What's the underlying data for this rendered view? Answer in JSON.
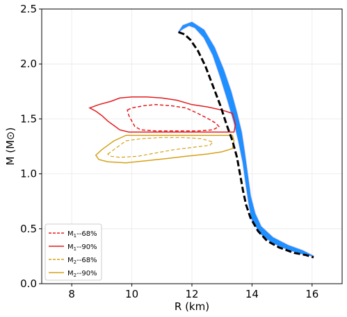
{
  "chart_data": {
    "type": "line",
    "xlabel": "R (km)",
    "ylabel": "M (M⊙)",
    "xlim": [
      7.0,
      17.0
    ],
    "ylim": [
      0.0,
      2.5
    ],
    "x_ticks": [
      8,
      10,
      12,
      14,
      16
    ],
    "x_tick_labels": [
      "8",
      "10",
      "12",
      "14",
      "16"
    ],
    "y_ticks": [
      0.0,
      0.5,
      1.0,
      1.5,
      2.0,
      2.5
    ],
    "y_tick_labels": [
      "0.0",
      "0.5",
      "1.0",
      "1.5",
      "2.0",
      "2.5"
    ],
    "grid": true,
    "legend_position": "lower-left",
    "colors": {
      "band": "#1e90ff",
      "band_edge": "#e6a8e6",
      "m1": "#e41a1c",
      "m2": "#d4a017",
      "best_fit": "#000000"
    },
    "legend": [
      {
        "label_main": "M",
        "label_sub": "1",
        "label_tail": "--68%",
        "color": "#e41a1c",
        "dashed": true
      },
      {
        "label_main": "M",
        "label_sub": "1",
        "label_tail": "--90%",
        "color": "#e41a1c",
        "dashed": false
      },
      {
        "label_main": "M",
        "label_sub": "2",
        "label_tail": "--68%",
        "color": "#d4a017",
        "dashed": true
      },
      {
        "label_main": "M",
        "label_sub": "2",
        "label_tail": "--90%",
        "color": "#d4a017",
        "dashed": false
      }
    ],
    "band_left": [
      [
        11.55,
        2.29
      ],
      [
        11.7,
        2.32
      ],
      [
        11.9,
        2.35
      ],
      [
        12.1,
        2.33
      ],
      [
        12.4,
        2.24
      ],
      [
        12.7,
        2.08
      ],
      [
        12.95,
        1.88
      ],
      [
        13.2,
        1.66
      ],
      [
        13.4,
        1.47
      ],
      [
        13.55,
        1.3
      ],
      [
        13.7,
        1.1
      ],
      [
        13.8,
        0.9
      ],
      [
        13.9,
        0.72
      ],
      [
        14.0,
        0.58
      ],
      [
        14.3,
        0.45
      ],
      [
        14.7,
        0.37
      ],
      [
        15.2,
        0.31
      ],
      [
        15.7,
        0.27
      ],
      [
        16.05,
        0.25
      ]
    ],
    "band_right": [
      [
        16.05,
        0.25
      ],
      [
        15.7,
        0.3
      ],
      [
        15.2,
        0.35
      ],
      [
        14.7,
        0.42
      ],
      [
        14.3,
        0.52
      ],
      [
        14.1,
        0.64
      ],
      [
        13.95,
        0.8
      ],
      [
        13.85,
        1.0
      ],
      [
        13.75,
        1.2
      ],
      [
        13.65,
        1.38
      ],
      [
        13.5,
        1.55
      ],
      [
        13.3,
        1.75
      ],
      [
        13.05,
        1.95
      ],
      [
        12.75,
        2.15
      ],
      [
        12.4,
        2.31
      ],
      [
        12.0,
        2.38
      ],
      [
        11.7,
        2.35
      ],
      [
        11.55,
        2.29
      ]
    ],
    "best_fit": [
      [
        11.55,
        2.29
      ],
      [
        11.75,
        2.27
      ],
      [
        11.95,
        2.22
      ],
      [
        12.2,
        2.12
      ],
      [
        12.45,
        1.98
      ],
      [
        12.7,
        1.8
      ],
      [
        12.95,
        1.62
      ],
      [
        13.15,
        1.45
      ],
      [
        13.35,
        1.3
      ],
      [
        13.5,
        1.15
      ],
      [
        13.6,
        1.0
      ],
      [
        13.7,
        0.85
      ],
      [
        13.8,
        0.72
      ],
      [
        13.95,
        0.6
      ],
      [
        14.2,
        0.48
      ],
      [
        14.5,
        0.39
      ],
      [
        14.9,
        0.33
      ],
      [
        15.4,
        0.28
      ],
      [
        15.8,
        0.26
      ],
      [
        16.05,
        0.24
      ]
    ],
    "m1_90": [
      [
        8.6,
        1.6
      ],
      [
        8.9,
        1.63
      ],
      [
        9.3,
        1.66
      ],
      [
        9.6,
        1.69
      ],
      [
        10.0,
        1.7
      ],
      [
        10.5,
        1.7
      ],
      [
        11.0,
        1.69
      ],
      [
        11.5,
        1.67
      ],
      [
        12.0,
        1.63
      ],
      [
        12.5,
        1.61
      ],
      [
        13.0,
        1.58
      ],
      [
        13.35,
        1.55
      ],
      [
        13.45,
        1.45
      ],
      [
        13.4,
        1.38
      ],
      [
        12.5,
        1.38
      ],
      [
        11.5,
        1.38
      ],
      [
        10.5,
        1.38
      ],
      [
        9.9,
        1.38
      ],
      [
        9.6,
        1.4
      ],
      [
        9.4,
        1.44
      ],
      [
        9.2,
        1.48
      ],
      [
        9.0,
        1.53
      ],
      [
        8.8,
        1.57
      ],
      [
        8.6,
        1.6
      ]
    ],
    "m1_68": [
      [
        9.85,
        1.58
      ],
      [
        10.0,
        1.6
      ],
      [
        10.4,
        1.62
      ],
      [
        10.8,
        1.63
      ],
      [
        11.3,
        1.62
      ],
      [
        11.8,
        1.6
      ],
      [
        12.2,
        1.55
      ],
      [
        12.55,
        1.5
      ],
      [
        12.8,
        1.46
      ],
      [
        12.9,
        1.43
      ],
      [
        12.7,
        1.4
      ],
      [
        12.2,
        1.39
      ],
      [
        11.5,
        1.39
      ],
      [
        10.8,
        1.39
      ],
      [
        10.3,
        1.4
      ],
      [
        10.1,
        1.43
      ],
      [
        10.0,
        1.48
      ],
      [
        9.9,
        1.53
      ],
      [
        9.85,
        1.58
      ]
    ],
    "m2_90": [
      [
        8.8,
        1.17
      ],
      [
        9.0,
        1.22
      ],
      [
        9.4,
        1.3
      ],
      [
        9.8,
        1.35
      ],
      [
        10.3,
        1.35
      ],
      [
        10.8,
        1.35
      ],
      [
        11.5,
        1.35
      ],
      [
        12.2,
        1.35
      ],
      [
        12.8,
        1.35
      ],
      [
        13.35,
        1.35
      ],
      [
        13.4,
        1.3
      ],
      [
        13.35,
        1.23
      ],
      [
        13.0,
        1.2
      ],
      [
        12.5,
        1.18
      ],
      [
        11.8,
        1.16
      ],
      [
        11.2,
        1.14
      ],
      [
        10.5,
        1.12
      ],
      [
        9.8,
        1.1
      ],
      [
        9.2,
        1.11
      ],
      [
        8.9,
        1.13
      ],
      [
        8.8,
        1.17
      ]
    ],
    "m2_68": [
      [
        9.2,
        1.18
      ],
      [
        9.5,
        1.24
      ],
      [
        9.8,
        1.3
      ],
      [
        10.3,
        1.32
      ],
      [
        11.0,
        1.33
      ],
      [
        11.7,
        1.33
      ],
      [
        12.3,
        1.32
      ],
      [
        12.7,
        1.29
      ],
      [
        12.6,
        1.26
      ],
      [
        12.0,
        1.24
      ],
      [
        11.4,
        1.22
      ],
      [
        10.8,
        1.19
      ],
      [
        10.2,
        1.16
      ],
      [
        9.6,
        1.15
      ],
      [
        9.3,
        1.16
      ],
      [
        9.2,
        1.18
      ]
    ]
  }
}
